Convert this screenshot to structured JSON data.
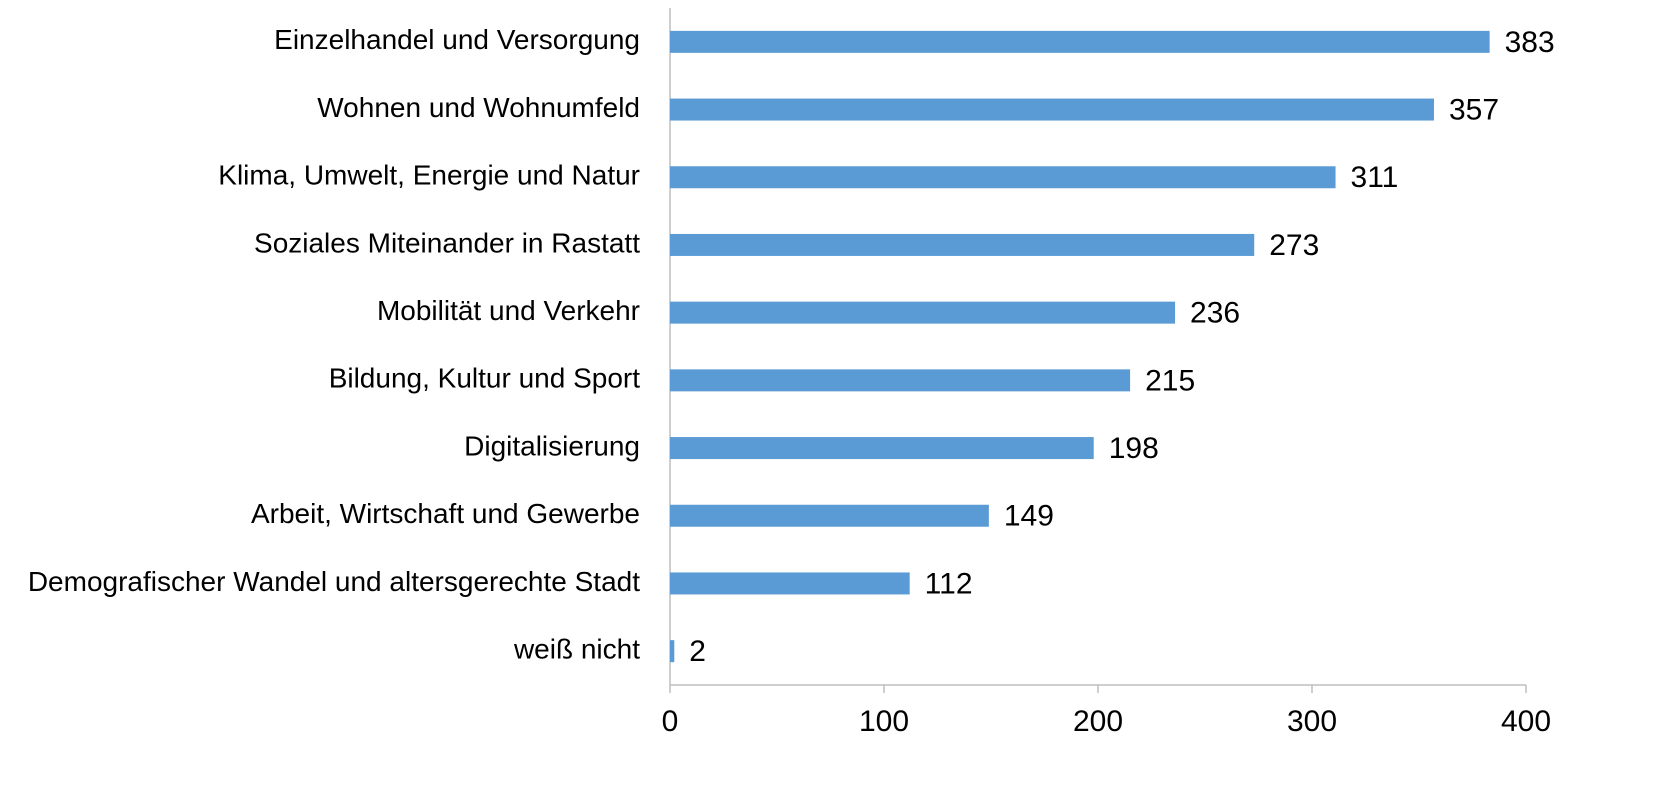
{
  "chart_data": {
    "type": "bar",
    "horizontal": true,
    "categories": [
      "Einzelhandel und Versorgung",
      "Wohnen und Wohnumfeld",
      "Klima, Umwelt, Energie und Natur",
      "Soziales Miteinander in Rastatt",
      "Mobilität und Verkehr",
      "Bildung, Kultur und Sport",
      "Digitalisierung",
      "Arbeit, Wirtschaft und Gewerbe",
      "Demografischer Wandel und altersgerechte Stadt",
      "weiß nicht"
    ],
    "values": [
      383,
      357,
      311,
      273,
      236,
      215,
      198,
      149,
      112,
      2
    ],
    "color": "#5b9bd5",
    "xlim": [
      0,
      400
    ],
    "xticks": [
      0,
      100,
      200,
      300,
      400
    ],
    "grid": false
  }
}
